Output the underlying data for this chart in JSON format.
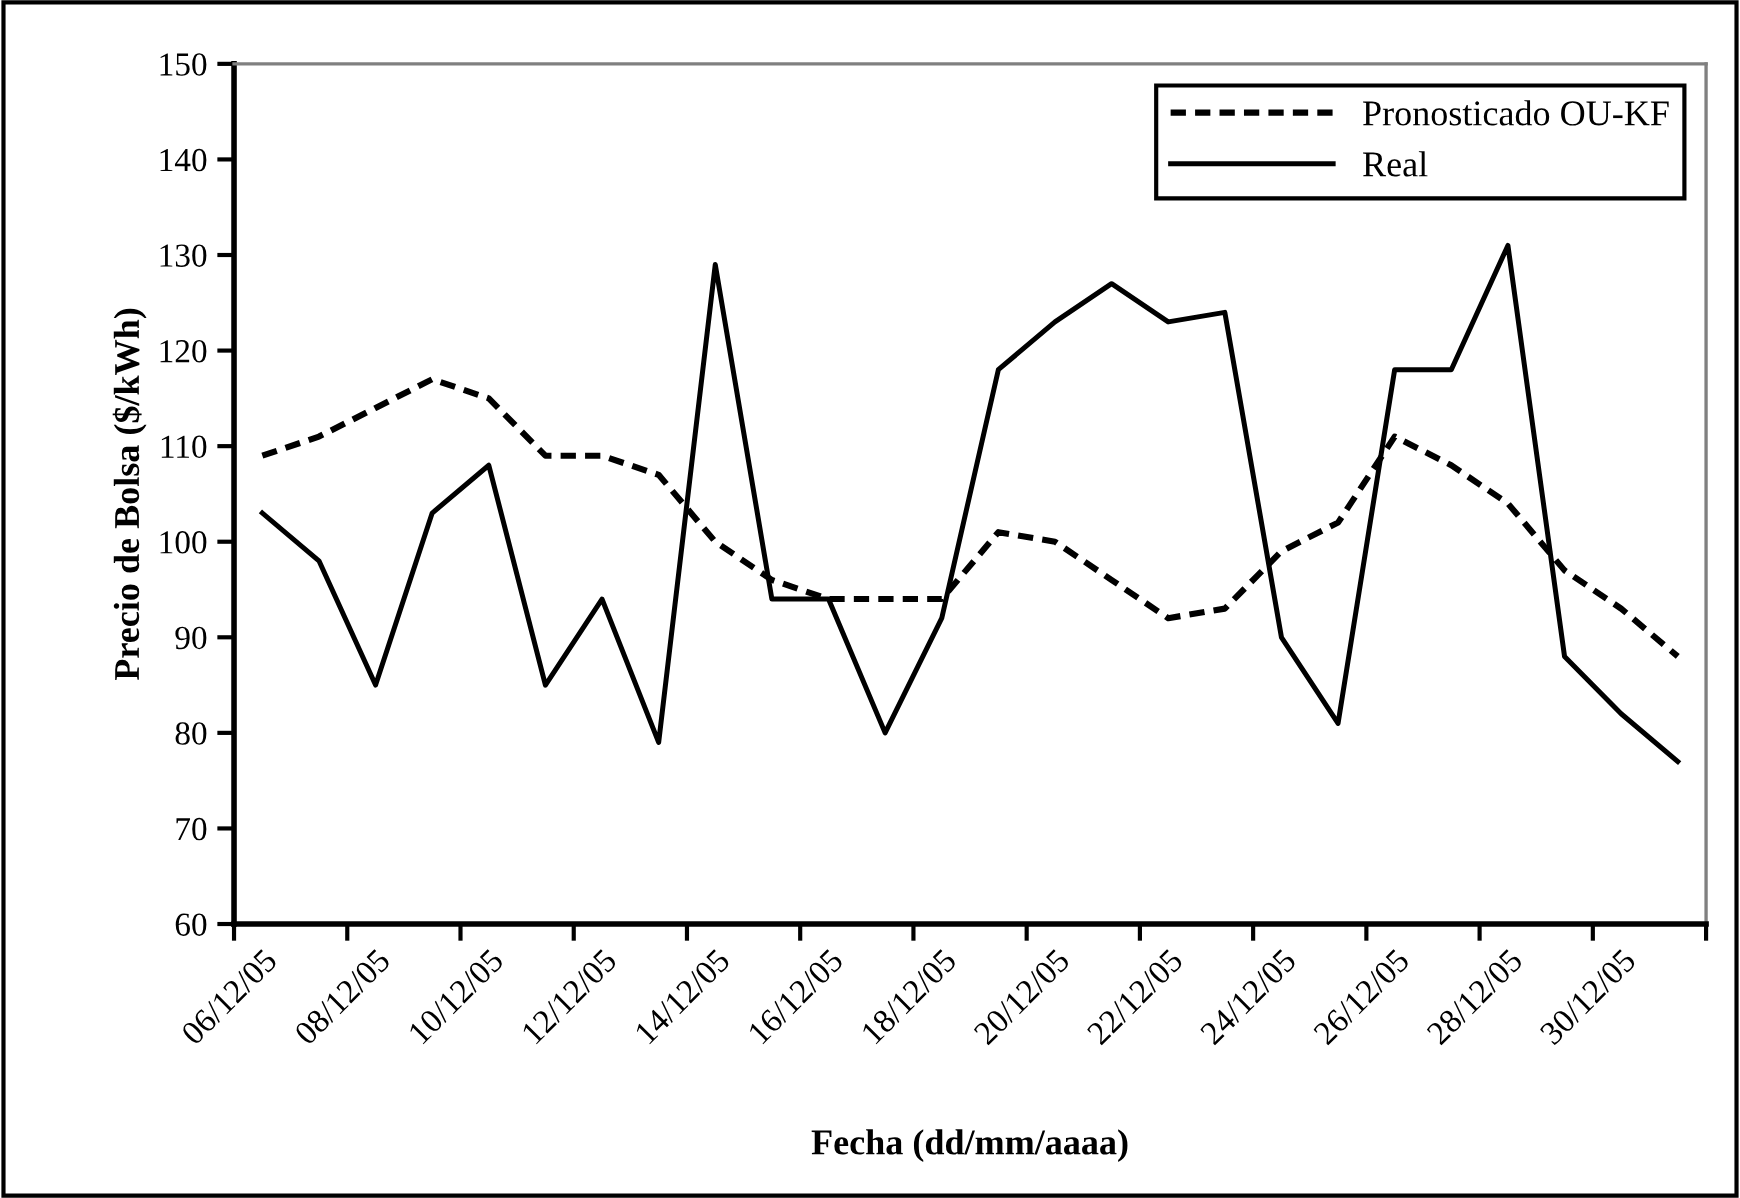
{
  "chart_data": {
    "type": "line",
    "xlabel": "Fecha (dd/mm/aaaa)",
    "ylabel": "Precio de Bolsa ($/kWh)",
    "categories": [
      "06/12/05",
      null,
      "08/12/05",
      null,
      "10/12/05",
      null,
      "12/12/05",
      null,
      "14/12/05",
      null,
      "16/12/05",
      null,
      "18/12/05",
      null,
      "20/12/05",
      null,
      "22/12/05",
      null,
      "24/12/05",
      null,
      "26/12/05",
      null,
      "28/12/05",
      null,
      "30/12/05",
      null
    ],
    "series": [
      {
        "name": "Pronosticado OU-KF",
        "color": "#000000",
        "line_style": "dashed",
        "values": [
          109,
          111,
          114,
          117,
          115,
          109,
          109,
          107,
          100,
          96,
          94,
          94,
          94,
          101,
          100,
          96,
          92,
          93,
          99,
          102,
          111,
          108,
          104,
          97,
          93,
          88
        ]
      },
      {
        "name": "Real",
        "color": "#000000",
        "line_style": "solid",
        "values": [
          103,
          98,
          85,
          103,
          108,
          85,
          94,
          79,
          129,
          94,
          94,
          80,
          92,
          118,
          123,
          127,
          123,
          124,
          90,
          81,
          118,
          118,
          131,
          88,
          82,
          77
        ]
      }
    ],
    "ylim": [
      60,
      150
    ],
    "yticks": [
      60,
      70,
      80,
      90,
      100,
      110,
      120,
      130,
      140,
      150
    ],
    "grid": false,
    "legend": "top right",
    "marker": "none"
  }
}
